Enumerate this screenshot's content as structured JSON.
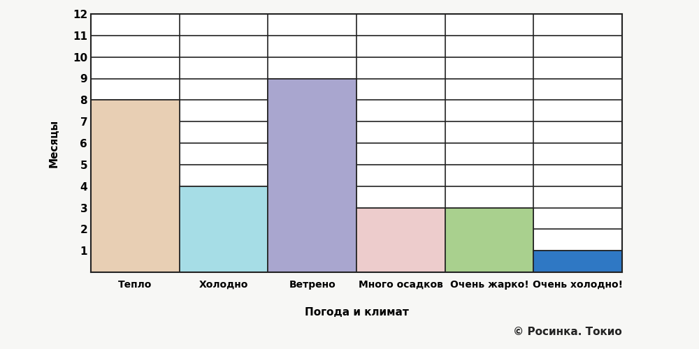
{
  "chart_data": {
    "type": "bar",
    "categories": [
      "Тепло",
      "Холодно",
      "Ветрено",
      "Много осадков",
      "Очень жарко!",
      "Очень холодно!"
    ],
    "values": [
      8,
      4,
      9,
      3,
      3,
      1
    ],
    "colors": [
      "#e8cfb4",
      "#a6dde6",
      "#a9a6cf",
      "#edcccc",
      "#a9d08e",
      "#2f78c4"
    ],
    "xlabel": "Погода и климат",
    "ylabel": "Месяцы",
    "ylim": [
      0,
      12
    ],
    "yticks": [
      1,
      2,
      3,
      4,
      5,
      6,
      7,
      8,
      9,
      10,
      11,
      12
    ],
    "grid": true,
    "annotations": [
      "© Росинка. Токио"
    ]
  }
}
